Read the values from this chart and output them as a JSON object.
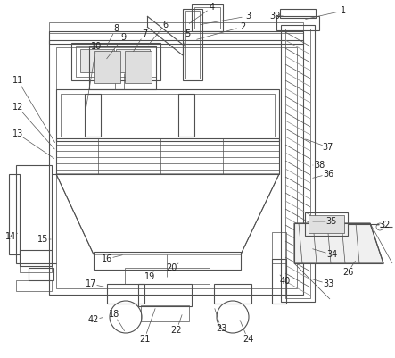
{
  "figure_width": 4.43,
  "figure_height": 4.01,
  "dpi": 100,
  "bg_color": "#ffffff",
  "lc": "#505050",
  "lw": 0.8,
  "tlw": 0.5
}
